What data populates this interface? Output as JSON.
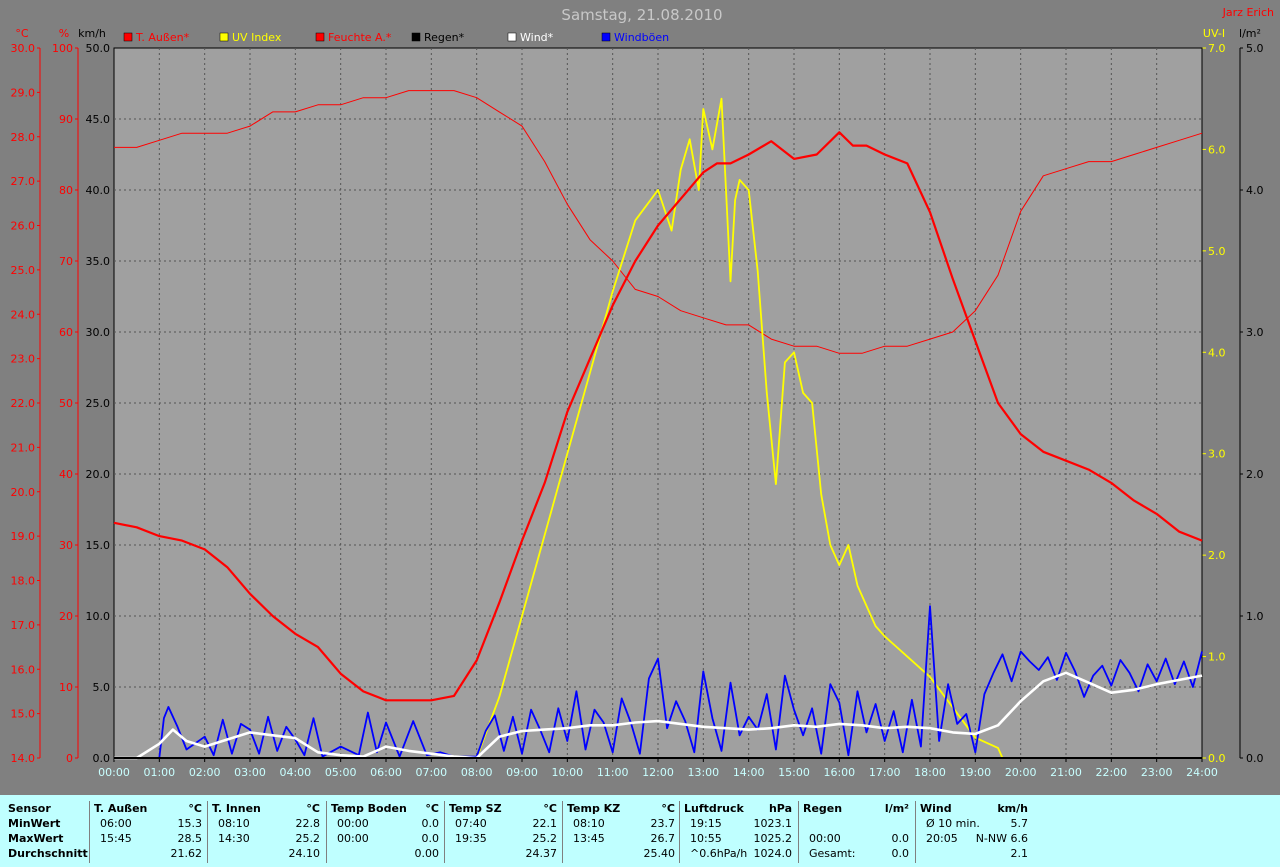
{
  "header": {
    "title": "Samstag, 21.08.2010",
    "author": "Jarz Erich"
  },
  "colors": {
    "background": "#808080",
    "plot_background": "#a0a0a0",
    "temperature": "#ff0000",
    "uv": "#ffff00",
    "humidity": "#ff0000",
    "rain": "#000000",
    "wind": "#ffffff",
    "gusts": "#0000ff",
    "panel": "#bfffff"
  },
  "legend": [
    {
      "label": "T. Außen*",
      "color": "#ff0000"
    },
    {
      "label": "UV Index",
      "color": "#ffff00"
    },
    {
      "label": "Feuchte A.*",
      "color": "#ff0000"
    },
    {
      "label": "Regen*",
      "color": "#000000"
    },
    {
      "label": "Wind*",
      "color": "#ffffff"
    },
    {
      "label": "Windböen",
      "color": "#0000ff"
    }
  ],
  "chart_data": {
    "type": "line",
    "title": "Samstag, 21.08.2010",
    "x_ticks": [
      "00:00",
      "01:00",
      "02:00",
      "03:00",
      "04:00",
      "05:00",
      "06:00",
      "07:00",
      "08:00",
      "09:00",
      "10:00",
      "11:00",
      "12:00",
      "13:00",
      "14:00",
      "15:00",
      "16:00",
      "17:00",
      "18:00",
      "19:00",
      "20:00",
      "21:00",
      "22:00",
      "23:00",
      "24:00"
    ],
    "axes": {
      "temp": {
        "unit": "°C",
        "ticks": [
          "30.0",
          "29.0",
          "28.0",
          "27.0",
          "26.0",
          "25.0",
          "24.0",
          "23.0",
          "22.0",
          "21.0",
          "20.0",
          "19.0",
          "18.0",
          "17.0",
          "16.0",
          "15.0",
          "14.0"
        ],
        "range": [
          14,
          30
        ]
      },
      "humidity": {
        "unit": "%",
        "ticks": [
          "100",
          "90",
          "80",
          "70",
          "60",
          "50",
          "40",
          "30",
          "20",
          "10",
          "0"
        ],
        "range": [
          0,
          100
        ]
      },
      "wind": {
        "unit": "km/h",
        "ticks": [
          "50.0",
          "45.0",
          "40.0",
          "35.0",
          "30.0",
          "25.0",
          "20.0",
          "15.0",
          "10.0",
          "5.0",
          "0.0"
        ],
        "range": [
          0,
          50
        ]
      },
      "uv": {
        "unit": "UV-I",
        "ticks": [
          "7.0",
          "6.0",
          "5.0",
          "4.0",
          "3.0",
          "2.0",
          "1.0",
          "0.0"
        ],
        "range": [
          0,
          7
        ]
      },
      "rain": {
        "unit": "l/m²",
        "ticks": [
          "5.0",
          "4.0",
          "3.0",
          "2.0",
          "1.0",
          "0.0"
        ],
        "range": [
          0,
          5
        ]
      }
    },
    "series": [
      {
        "name": "T. Außen*",
        "axis": "temp",
        "x": [
          0,
          0.5,
          1,
          1.5,
          2,
          2.5,
          3,
          3.5,
          4,
          4.5,
          5,
          5.5,
          6,
          6.5,
          7,
          7.5,
          8,
          8.5,
          9,
          9.5,
          10,
          10.5,
          11,
          11.5,
          12,
          12.5,
          13,
          13.3,
          13.6,
          14,
          14.5,
          15,
          15.5,
          16,
          16.3,
          16.6,
          17,
          17.5,
          18,
          18.5,
          19,
          19.5,
          20,
          20.5,
          21,
          21.5,
          22,
          22.5,
          23,
          23.5,
          24
        ],
        "y": [
          19.3,
          19.2,
          19.0,
          18.9,
          18.7,
          18.3,
          17.7,
          17.2,
          16.8,
          16.5,
          15.9,
          15.5,
          15.3,
          15.3,
          15.3,
          15.4,
          16.2,
          17.5,
          18.9,
          20.2,
          21.8,
          23.0,
          24.2,
          25.2,
          26.0,
          26.6,
          27.2,
          27.4,
          27.4,
          27.6,
          27.9,
          27.5,
          27.6,
          28.1,
          27.8,
          27.8,
          27.6,
          27.4,
          26.3,
          24.8,
          23.4,
          22.0,
          21.3,
          20.9,
          20.7,
          20.5,
          20.2,
          19.8,
          19.5,
          19.1,
          18.9
        ]
      },
      {
        "name": "Feuchte A.*",
        "axis": "humidity",
        "x": [
          0,
          0.5,
          1,
          1.5,
          2,
          2.5,
          3,
          3.5,
          4,
          4.5,
          5,
          5.5,
          6,
          6.5,
          7,
          7.5,
          8,
          8.5,
          9,
          9.5,
          10,
          10.5,
          11,
          11.5,
          12,
          12.5,
          13,
          13.5,
          14,
          14.5,
          15,
          15.5,
          16,
          16.5,
          17,
          17.5,
          18,
          18.5,
          19,
          19.5,
          20,
          20.5,
          21,
          21.5,
          22,
          22.5,
          23,
          23.5,
          24
        ],
        "y": [
          86,
          86,
          87,
          88,
          88,
          88,
          89,
          91,
          91,
          92,
          92,
          93,
          93,
          94,
          94,
          94,
          93,
          91,
          89,
          84,
          78,
          73,
          70,
          66,
          65,
          63,
          62,
          61,
          61,
          59,
          58,
          58,
          57,
          57,
          58,
          58,
          59,
          60,
          63,
          68,
          77,
          82,
          83,
          84,
          84,
          85,
          86,
          87,
          88
        ]
      },
      {
        "name": "UV Index",
        "axis": "uv",
        "x": [
          0,
          8.0,
          8.5,
          9.0,
          9.5,
          10.0,
          10.5,
          11.0,
          11.5,
          12.0,
          12.3,
          12.5,
          12.7,
          12.9,
          13.0,
          13.2,
          13.4,
          13.6,
          13.7,
          13.8,
          14.0,
          14.2,
          14.4,
          14.6,
          14.8,
          15.0,
          15.2,
          15.4,
          15.6,
          15.8,
          16.0,
          16.2,
          16.4,
          16.6,
          16.8,
          17.0,
          17.5,
          18.0,
          18.5,
          19.0,
          19.5,
          19.6,
          24
        ],
        "y": [
          0,
          0,
          0.6,
          1.4,
          2.2,
          3.0,
          3.8,
          4.6,
          5.3,
          5.6,
          5.2,
          5.8,
          6.1,
          5.6,
          6.4,
          6.0,
          6.5,
          4.7,
          5.5,
          5.7,
          5.6,
          4.8,
          3.6,
          2.7,
          3.9,
          4.0,
          3.6,
          3.5,
          2.6,
          2.1,
          1.9,
          2.1,
          1.7,
          1.5,
          1.3,
          1.2,
          1.0,
          0.8,
          0.5,
          0.2,
          0.1,
          0,
          0
        ]
      },
      {
        "name": "Wind*",
        "axis": "wind",
        "x": [
          0,
          0.5,
          1,
          1.3,
          1.6,
          2,
          2.5,
          3,
          3.5,
          4,
          4.5,
          5,
          5.5,
          6,
          6.5,
          7,
          7.5,
          8,
          8.5,
          9,
          9.5,
          10,
          10.5,
          11,
          11.5,
          12,
          12.5,
          13,
          13.5,
          14,
          14.5,
          15,
          15.5,
          16,
          16.5,
          17,
          17.5,
          18,
          18.5,
          19,
          19.5,
          20,
          20.5,
          21,
          21.5,
          22,
          22.5,
          23,
          23.5,
          24
        ],
        "y": [
          0,
          0,
          1.0,
          2.0,
          1.2,
          0.8,
          1.3,
          1.8,
          1.6,
          1.4,
          0.4,
          0.2,
          0.1,
          0.8,
          0.5,
          0.3,
          0.1,
          0,
          1.5,
          1.9,
          2.0,
          2.1,
          2.3,
          2.3,
          2.5,
          2.6,
          2.4,
          2.2,
          2.1,
          2.0,
          2.1,
          2.3,
          2.2,
          2.4,
          2.3,
          2.1,
          2.2,
          2.1,
          1.8,
          1.7,
          2.3,
          4.0,
          5.4,
          6.0,
          5.3,
          4.6,
          4.8,
          5.2,
          5.5,
          5.8
        ]
      },
      {
        "name": "Windböen",
        "axis": "wind",
        "x": [
          0,
          1.0,
          1.1,
          1.2,
          1.4,
          1.6,
          2.0,
          2.2,
          2.4,
          2.6,
          2.8,
          3.0,
          3.2,
          3.4,
          3.6,
          3.8,
          4.0,
          4.2,
          4.4,
          4.6,
          5.0,
          5.4,
          5.6,
          5.8,
          6.0,
          6.3,
          6.6,
          6.9,
          7.2,
          7.5,
          8.0,
          8.2,
          8.4,
          8.6,
          8.8,
          9.0,
          9.2,
          9.4,
          9.6,
          9.8,
          10.0,
          10.2,
          10.4,
          10.6,
          10.8,
          11.0,
          11.2,
          11.4,
          11.6,
          11.8,
          12.0,
          12.2,
          12.4,
          12.6,
          12.8,
          13.0,
          13.2,
          13.4,
          13.6,
          13.8,
          14.0,
          14.2,
          14.4,
          14.6,
          14.8,
          15.0,
          15.2,
          15.4,
          15.6,
          15.8,
          16.0,
          16.2,
          16.4,
          16.6,
          16.8,
          17.0,
          17.2,
          17.4,
          17.6,
          17.8,
          18.0,
          18.2,
          18.4,
          18.6,
          18.8,
          19.0,
          19.2,
          19.4,
          19.6,
          19.8,
          20.0,
          20.2,
          20.4,
          20.6,
          20.8,
          21.0,
          21.2,
          21.4,
          21.6,
          21.8,
          22.0,
          22.2,
          22.4,
          22.6,
          22.8,
          23.0,
          23.2,
          23.4,
          23.6,
          23.8,
          24.0
        ],
        "y": [
          0,
          0,
          2.8,
          3.6,
          2.2,
          0.6,
          1.5,
          0.2,
          2.7,
          0.3,
          2.4,
          2.0,
          0.3,
          2.9,
          0.5,
          2.2,
          1.3,
          0.2,
          2.8,
          0.1,
          0.8,
          0.2,
          3.2,
          0.4,
          2.5,
          0.1,
          2.6,
          0.2,
          0.4,
          0.1,
          0.1,
          1.9,
          3.0,
          0.5,
          2.9,
          0.3,
          3.4,
          2.0,
          0.4,
          3.5,
          1.2,
          4.7,
          0.6,
          3.4,
          2.5,
          0.4,
          4.2,
          2.5,
          0.3,
          5.6,
          7.0,
          2.1,
          4.0,
          2.6,
          0.4,
          6.1,
          2.8,
          0.5,
          5.3,
          1.6,
          2.9,
          2.0,
          4.5,
          0.6,
          5.8,
          3.4,
          1.6,
          3.5,
          0.3,
          5.2,
          3.9,
          0.2,
          4.7,
          1.8,
          3.8,
          1.2,
          3.3,
          0.4,
          4.1,
          0.8,
          10.7,
          1.2,
          5.2,
          2.4,
          3.1,
          0.4,
          4.5,
          6.0,
          7.3,
          5.4,
          7.5,
          6.8,
          6.2,
          7.1,
          5.5,
          7.4,
          6.1,
          4.3,
          5.8,
          6.5,
          5.1,
          6.9,
          6.0,
          4.7,
          6.6,
          5.4,
          7.0,
          5.2,
          6.8,
          5.0,
          7.5
        ]
      },
      {
        "name": "Regen*",
        "axis": "rain",
        "x": [
          0,
          24
        ],
        "y": [
          0,
          0
        ]
      }
    ]
  },
  "summary": {
    "row_labels": [
      "Sensor",
      "MinWert",
      "MaxWert",
      "Durchschnitt"
    ],
    "columns": [
      {
        "name": "T. Außen",
        "unit": "°C",
        "rows": [
          [
            "06:00",
            "15.3"
          ],
          [
            "15:45",
            "28.5"
          ],
          [
            "",
            "21.62"
          ]
        ]
      },
      {
        "name": "T. Innen",
        "unit": "°C",
        "rows": [
          [
            "08:10",
            "22.8"
          ],
          [
            "14:30",
            "25.2"
          ],
          [
            "",
            "24.10"
          ]
        ]
      },
      {
        "name": "Temp Boden",
        "unit": "°C",
        "rows": [
          [
            "00:00",
            "0.0"
          ],
          [
            "00:00",
            "0.0"
          ],
          [
            "",
            "0.00"
          ]
        ]
      },
      {
        "name": "Temp SZ",
        "unit": "°C",
        "rows": [
          [
            "07:40",
            "22.1"
          ],
          [
            "19:35",
            "25.2"
          ],
          [
            "",
            "24.37"
          ]
        ]
      },
      {
        "name": "Temp KZ",
        "unit": "°C",
        "rows": [
          [
            "08:10",
            "23.7"
          ],
          [
            "13:45",
            "26.7"
          ],
          [
            "",
            "25.40"
          ]
        ]
      },
      {
        "name": "Luftdruck",
        "unit": "hPa",
        "rows": [
          [
            "19:15",
            "1023.1"
          ],
          [
            "10:55",
            "1025.2"
          ],
          [
            "^0.6hPa/h",
            "1024.0"
          ]
        ]
      },
      {
        "name": "Regen",
        "unit": "l/m²",
        "rows": [
          [
            "",
            ""
          ],
          [
            "00:00",
            "0.0"
          ],
          [
            "Gesamt:",
            "0.0"
          ]
        ]
      },
      {
        "name": "Wind",
        "unit": "km/h",
        "rows": [
          [
            "Ø 10 min.",
            "5.7"
          ],
          [
            "20:05",
            "N-NW 6.6"
          ],
          [
            "",
            "2.1"
          ]
        ]
      }
    ]
  }
}
